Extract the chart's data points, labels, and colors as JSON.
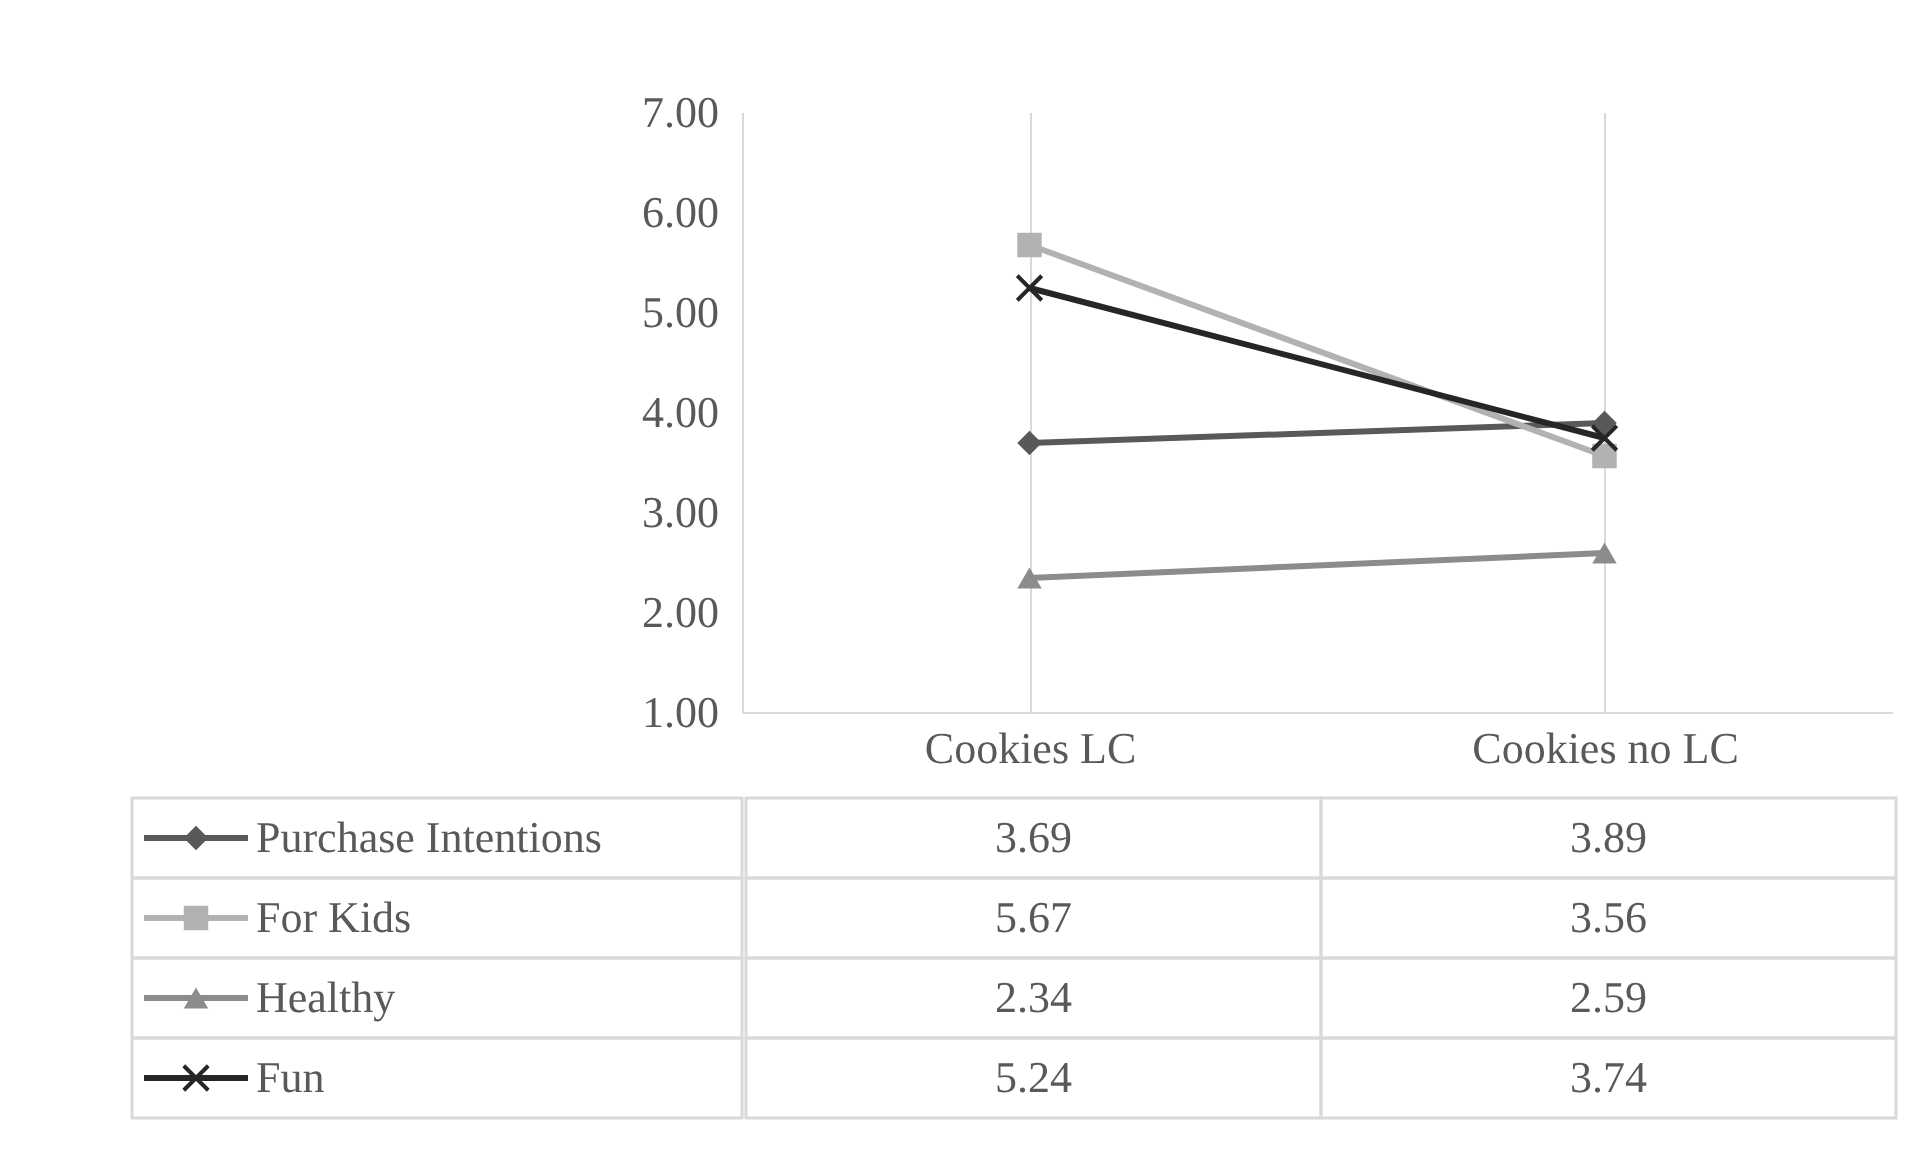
{
  "chart_data": {
    "type": "line",
    "categories": [
      "Cookies LC",
      "Cookies no LC"
    ],
    "series": [
      {
        "name": "Purchase Intentions",
        "color": "#595959",
        "marker": "diamond",
        "values": [
          3.69,
          3.89
        ]
      },
      {
        "name": "For Kids",
        "color": "#b2b2b2",
        "marker": "square",
        "values": [
          5.67,
          3.56
        ]
      },
      {
        "name": "Healthy",
        "color": "#8c8c8c",
        "marker": "triangle",
        "values": [
          2.34,
          2.59
        ]
      },
      {
        "name": "Fun",
        "color": "#262626",
        "marker": "cross",
        "values": [
          5.24,
          3.74
        ]
      }
    ],
    "ylim": [
      1,
      7
    ],
    "yticks": [
      {
        "value": 1,
        "label": "1.00"
      },
      {
        "value": 2,
        "label": "2.00"
      },
      {
        "value": 3,
        "label": "3.00"
      },
      {
        "value": 4,
        "label": "4.00"
      },
      {
        "value": 5,
        "label": "5.00"
      },
      {
        "value": 6,
        "label": "6.00"
      },
      {
        "value": 7,
        "label": "7.00"
      }
    ],
    "grid": "x",
    "legend": "bottom",
    "data_labels": true
  }
}
